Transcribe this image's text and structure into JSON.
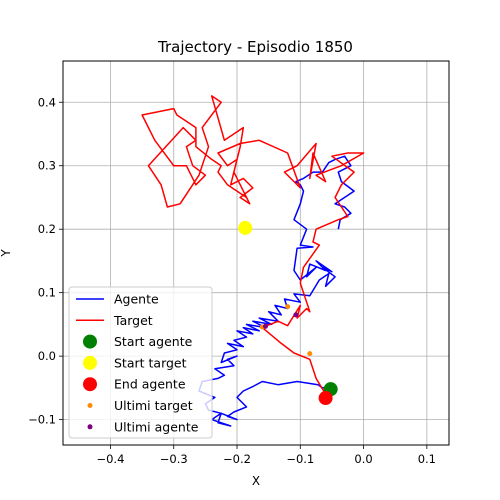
{
  "chart_data": {
    "type": "line",
    "title": "Trajectory - Episodio 1850",
    "xlabel": "X",
    "ylabel": "Y",
    "xlim": [
      -0.475,
      0.135
    ],
    "ylim": [
      -0.14,
      0.465
    ],
    "xticks": [
      -0.4,
      -0.3,
      -0.2,
      -0.1,
      0.0,
      0.1
    ],
    "yticks": [
      -0.1,
      0.0,
      0.1,
      0.2,
      0.3,
      0.4
    ],
    "grid": true,
    "legend_position": "lower-left",
    "series": [
      {
        "name": "Agente",
        "kind": "line",
        "color": "#0000ff",
        "x": [
          -0.052,
          -0.065,
          -0.072,
          -0.105,
          -0.135,
          -0.16,
          -0.175,
          -0.19,
          -0.2,
          -0.185,
          -0.205,
          -0.215,
          -0.2,
          -0.225,
          -0.23,
          -0.21,
          -0.24,
          -0.225,
          -0.245,
          -0.25,
          -0.235,
          -0.26,
          -0.255,
          -0.23,
          -0.22,
          -0.235,
          -0.205,
          -0.215,
          -0.2,
          -0.225,
          -0.22,
          -0.2,
          -0.215,
          -0.19,
          -0.205,
          -0.185,
          -0.2,
          -0.175,
          -0.19,
          -0.165,
          -0.185,
          -0.155,
          -0.175,
          -0.145,
          -0.165,
          -0.135,
          -0.15,
          -0.13,
          -0.14,
          -0.12,
          -0.125,
          -0.1,
          -0.11,
          -0.085,
          -0.07,
          -0.055,
          -0.06,
          -0.045,
          -0.065,
          -0.05,
          -0.075,
          -0.06,
          -0.085,
          -0.09,
          -0.075,
          -0.1,
          -0.11,
          -0.105,
          -0.08,
          -0.1,
          -0.09,
          -0.11,
          -0.1,
          -0.095,
          -0.1,
          -0.107,
          -0.095,
          -0.08,
          -0.065,
          -0.055,
          -0.045,
          -0.03,
          -0.02,
          -0.04,
          -0.035,
          -0.015,
          -0.045,
          -0.03,
          -0.02,
          -0.037,
          -0.04
        ],
        "y": [
          -0.048,
          -0.05,
          -0.045,
          -0.04,
          -0.045,
          -0.04,
          -0.048,
          -0.055,
          -0.065,
          -0.08,
          -0.088,
          -0.095,
          -0.1,
          -0.09,
          -0.105,
          -0.11,
          -0.1,
          -0.09,
          -0.085,
          -0.075,
          -0.065,
          -0.055,
          -0.04,
          -0.035,
          -0.03,
          -0.02,
          -0.015,
          -0.005,
          0.0,
          -0.01,
          0.005,
          0.01,
          0.02,
          0.015,
          0.025,
          0.03,
          0.04,
          0.035,
          0.045,
          0.04,
          0.05,
          0.045,
          0.055,
          0.05,
          0.06,
          0.055,
          0.07,
          0.065,
          0.08,
          0.075,
          0.09,
          0.085,
          0.098,
          0.095,
          0.12,
          0.13,
          0.11,
          0.125,
          0.14,
          0.133,
          0.15,
          0.135,
          0.145,
          0.125,
          0.14,
          0.12,
          0.135,
          0.17,
          0.172,
          0.175,
          0.2,
          0.215,
          0.24,
          0.26,
          0.27,
          0.275,
          0.28,
          0.29,
          0.29,
          0.305,
          0.31,
          0.315,
          0.3,
          0.29,
          0.275,
          0.26,
          0.24,
          0.235,
          0.225,
          0.215,
          0.2
        ]
      },
      {
        "name": "Target",
        "kind": "line",
        "color": "#ff0000",
        "x": [
          -0.057,
          -0.075,
          -0.085,
          -0.11,
          -0.13,
          -0.16,
          -0.135,
          -0.12,
          -0.1,
          -0.105,
          -0.09,
          -0.085,
          -0.1,
          -0.095,
          -0.07,
          -0.08,
          -0.075,
          -0.04,
          -0.025,
          -0.045,
          -0.035,
          -0.015,
          -0.05,
          -0.025,
          0.0,
          -0.035,
          -0.075,
          -0.06,
          -0.08,
          -0.085,
          -0.075,
          -0.105,
          -0.125,
          -0.1,
          -0.12,
          -0.165,
          -0.195,
          -0.23,
          -0.215,
          -0.2,
          -0.21,
          -0.19,
          -0.175,
          -0.195,
          -0.18,
          -0.205,
          -0.195,
          -0.19,
          -0.22,
          -0.24,
          -0.225,
          -0.255,
          -0.25,
          -0.245,
          -0.26,
          -0.29,
          -0.31,
          -0.32,
          -0.34,
          -0.285,
          -0.265,
          -0.28,
          -0.27,
          -0.25,
          -0.265,
          -0.28,
          -0.3,
          -0.33,
          -0.35,
          -0.3,
          -0.295,
          -0.265,
          -0.265,
          -0.24,
          -0.225,
          -0.23,
          -0.215,
          -0.185
        ],
        "y": [
          -0.065,
          -0.035,
          -0.005,
          0.005,
          0.02,
          0.045,
          0.055,
          0.048,
          0.08,
          0.06,
          0.075,
          0.07,
          0.115,
          0.14,
          0.175,
          0.18,
          0.2,
          0.215,
          0.22,
          0.25,
          0.27,
          0.29,
          0.315,
          0.32,
          0.32,
          0.3,
          0.285,
          0.275,
          0.32,
          0.28,
          0.335,
          0.3,
          0.29,
          0.265,
          0.32,
          0.34,
          0.335,
          0.32,
          0.3,
          0.31,
          0.27,
          0.28,
          0.265,
          0.25,
          0.24,
          0.29,
          0.33,
          0.36,
          0.34,
          0.41,
          0.4,
          0.36,
          0.345,
          0.33,
          0.285,
          0.24,
          0.235,
          0.27,
          0.3,
          0.36,
          0.34,
          0.33,
          0.3,
          0.285,
          0.27,
          0.3,
          0.3,
          0.34,
          0.38,
          0.39,
          0.38,
          0.36,
          0.33,
          0.31,
          0.3,
          0.29,
          0.27,
          0.25
        ]
      },
      {
        "name": "Start agente",
        "kind": "marker",
        "color": "#008000",
        "x": [
          -0.052
        ],
        "y": [
          -0.052
        ]
      },
      {
        "name": "Start target",
        "kind": "marker",
        "color": "#ffff00",
        "x": [
          -0.187
        ],
        "y": [
          0.202
        ]
      },
      {
        "name": "End agente",
        "kind": "marker",
        "color": "#ff0000",
        "x": [
          -0.06
        ],
        "y": [
          -0.066
        ]
      },
      {
        "name": "Ultimi target",
        "kind": "points",
        "color": "#ff8c00",
        "x": [
          -0.057,
          -0.085,
          -0.16,
          -0.12
        ],
        "y": [
          -0.067,
          0.004,
          0.046,
          0.078
        ]
      },
      {
        "name": "Ultimi agente",
        "kind": "points",
        "color": "#800080",
        "x": [
          -0.065,
          -0.107,
          -0.155
        ],
        "y": [
          -0.068,
          0.065,
          0.047
        ]
      }
    ]
  }
}
